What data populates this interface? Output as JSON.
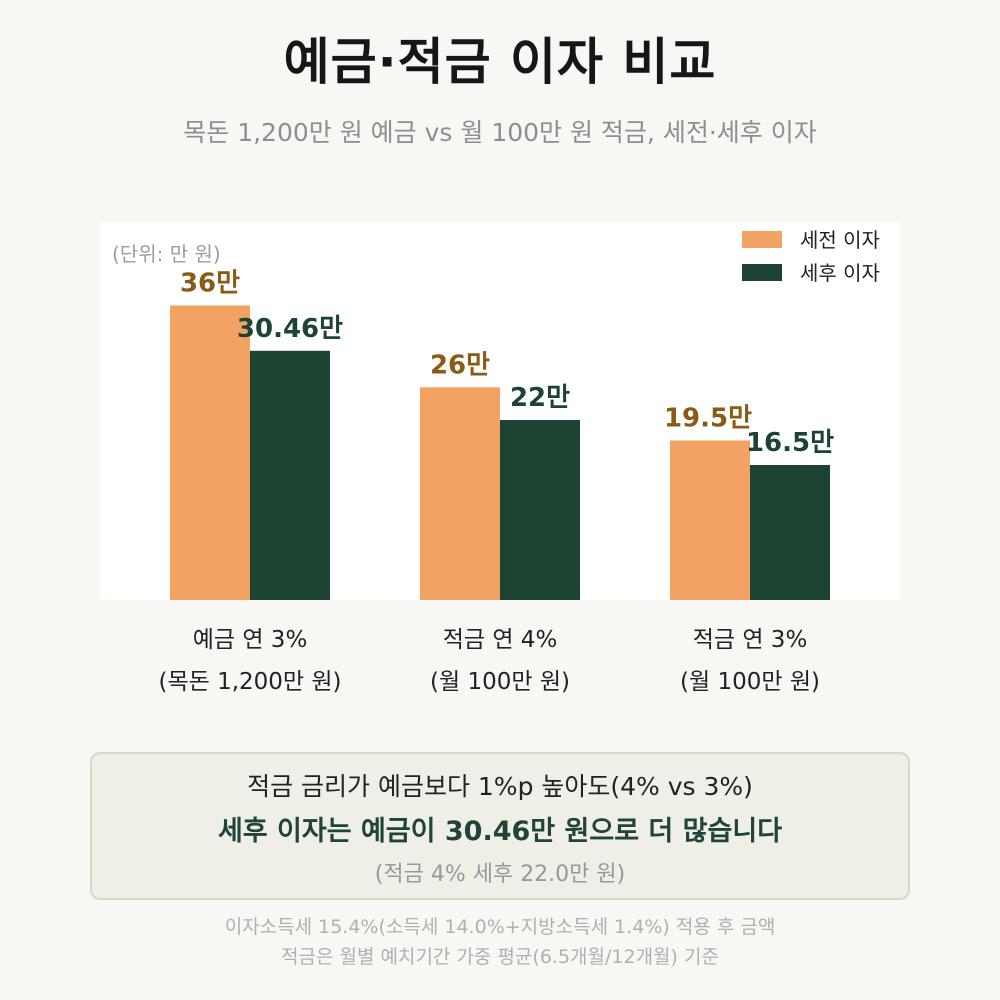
{
  "chart_data": {
    "type": "bar",
    "title": "예금·적금 이자 비교",
    "subtitle": "목돈 1,200만 원 예금 vs 월 100만 원 적금, 세전·세후 이자",
    "unit_label": "(단위: 만 원)",
    "categories": [
      "예금 연 3%",
      "적금 연 4%",
      "적금 연 3%"
    ],
    "category_details": [
      "(목돈 1,200만 원)",
      "(월 100만 원)",
      "(월 100만 원)"
    ],
    "series": [
      {
        "name": "세전 이자",
        "values": [
          36,
          26,
          19.5
        ],
        "labels": [
          "36만",
          "26만",
          "19.5만"
        ],
        "color": "#f2a262",
        "label_color": "#8a5a17"
      },
      {
        "name": "세후 이자",
        "values": [
          30.46,
          22,
          16.5
        ],
        "labels": [
          "30.46만",
          "22만",
          "16.5만"
        ],
        "color": "#1d4333",
        "label_color": "#1d4333"
      }
    ],
    "ylim": [
      0,
      44
    ],
    "grid": false,
    "legend": "top-right"
  },
  "callout": {
    "line1": "적금 금리가 예금보다 1%p 높아도(4% vs 3%)",
    "line2": "세후 이자는 예금이 30.46만 원으로 더 많습니다",
    "line3": "(적금 4% 세후 22.0만 원)"
  },
  "footnotes": [
    "이자소득세 15.4%(소득세 14.0%+지방소득세 1.4%) 적용 후 금액",
    "적금은 월별 예치기간 가중 평균(6.5개월/12개월) 기준"
  ],
  "colors": {
    "page_background": "#f8f7f3",
    "plot_background": "#ffffff",
    "highlight_text": "#1e4535"
  }
}
